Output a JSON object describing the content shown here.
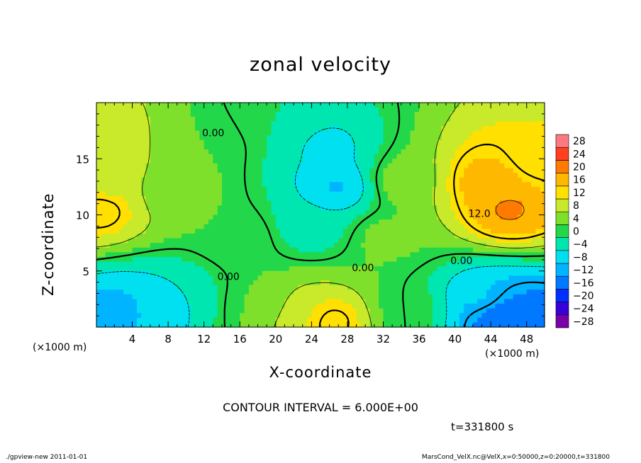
{
  "chart_data": {
    "type": "heatmap",
    "title": "zonal velocity",
    "xlabel": "X-coordinate",
    "ylabel": "Z-coordinate",
    "x_unit_label": "(×1000 m)",
    "y_unit_label": "(×1000 m)",
    "xlim": [
      0,
      50
    ],
    "ylim": [
      0,
      20
    ],
    "x_ticks": [
      4,
      8,
      12,
      16,
      20,
      24,
      28,
      32,
      36,
      40,
      44,
      48
    ],
    "y_ticks": [
      5,
      10,
      15
    ],
    "color_levels": [
      -28,
      -24,
      -20,
      -16,
      -12,
      -8,
      -4,
      0,
      4,
      8,
      12,
      16,
      20,
      24,
      28
    ],
    "color_labels": [
      "−28",
      "−24",
      "−20",
      "−16",
      "−12",
      "−8",
      "−4",
      "0",
      "4",
      "8",
      "12",
      "16",
      "20",
      "24",
      "28"
    ],
    "colors": [
      "#7a00a8",
      "#3a00d8",
      "#0030ff",
      "#0078ff",
      "#00b4ff",
      "#00e0f0",
      "#00e6b0",
      "#22d84a",
      "#7ee02a",
      "#c8ea2a",
      "#ffe000",
      "#ffb800",
      "#ff7a00",
      "#ff4020",
      "#ff7a80"
    ],
    "contour_interval_text": "CONTOUR INTERVAL = 6.000E+00",
    "contour_labels": [
      {
        "text": "0.00",
        "x": 11.8,
        "y": 17.0
      },
      {
        "text": "0.00",
        "x": 13.5,
        "y": 4.2
      },
      {
        "text": "0.00",
        "x": 28.5,
        "y": 5.0
      },
      {
        "text": "0.00",
        "x": 39.5,
        "y": 5.6
      },
      {
        "text": "12.0",
        "x": 41.5,
        "y": 9.8
      }
    ],
    "field_features": [
      {
        "x": 44,
        "y": 13,
        "v": 17
      },
      {
        "x": 46,
        "y": 10.5,
        "v": 19
      },
      {
        "x": 49,
        "y": 15,
        "v": 10
      },
      {
        "x": 0.5,
        "y": 10.5,
        "v": 14
      },
      {
        "x": 0.5,
        "y": 17,
        "v": 10
      },
      {
        "x": 1,
        "y": 13,
        "v": 8
      },
      {
        "x": 27,
        "y": 12.5,
        "v": -11
      },
      {
        "x": 26,
        "y": 16,
        "v": -7
      },
      {
        "x": 24,
        "y": 9,
        "v": -5
      },
      {
        "x": 26,
        "y": 0.5,
        "v": 14
      },
      {
        "x": 23,
        "y": 1,
        "v": 9
      },
      {
        "x": 45,
        "y": 0.8,
        "v": -19
      },
      {
        "x": 48,
        "y": 1.2,
        "v": -16
      },
      {
        "x": 43,
        "y": 2.5,
        "v": -9
      },
      {
        "x": 2,
        "y": 1.5,
        "v": -12
      },
      {
        "x": 5.5,
        "y": 1.5,
        "v": -10
      },
      {
        "x": 9,
        "y": 2.5,
        "v": -6
      },
      {
        "x": 35,
        "y": 1.5,
        "v": 0
      },
      {
        "x": 34,
        "y": 13,
        "v": 4
      },
      {
        "x": 8,
        "y": 12,
        "v": 4
      },
      {
        "x": 16,
        "y": 8,
        "v": 2
      },
      {
        "x": 18,
        "y": 2,
        "v": 2
      },
      {
        "x": 12,
        "y": 17,
        "v": 2
      },
      {
        "x": 19,
        "y": 19,
        "v": -2
      },
      {
        "x": 32,
        "y": 8,
        "v": 3
      }
    ]
  },
  "time_label": "t=331800 s",
  "footer_left": "./gpview-new   2011-01-01",
  "footer_right": "MarsCond_VelX.nc@VelX,x=0:50000,z=0:20000,t=331800"
}
